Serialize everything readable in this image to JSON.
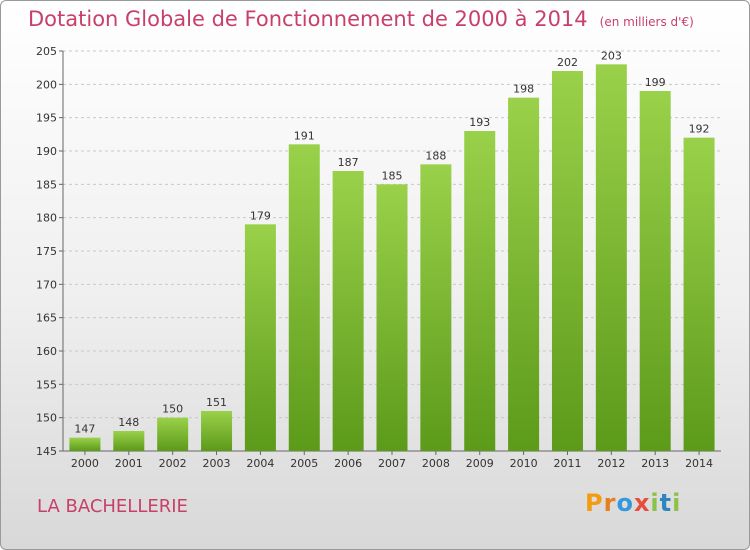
{
  "header": {
    "title": "Dotation Globale de Fonctionnement de 2000 à 2014",
    "unit": "(en milliers d'€)"
  },
  "commune": "LA BACHELLERIE",
  "logo": {
    "letters": [
      "P",
      "r",
      "o",
      "x",
      "i",
      "t",
      "i"
    ],
    "colors": [
      "#f39c12",
      "#e67e22",
      "#3498db",
      "#e74c3c",
      "#8bc34a",
      "#2e86c1",
      "#8bc34a"
    ]
  },
  "colors": {
    "bar_light": "#9ad14a",
    "bar_dark": "#5c9a1a",
    "title": "#c8406a"
  },
  "chart_data": {
    "type": "bar",
    "title": "Dotation Globale de Fonctionnement de 2000 à 2014",
    "xlabel": "",
    "ylabel": "",
    "categories": [
      "2000",
      "2001",
      "2002",
      "2003",
      "2004",
      "2005",
      "2006",
      "2007",
      "2008",
      "2009",
      "2010",
      "2011",
      "2012",
      "2013",
      "2014"
    ],
    "values": [
      147,
      148,
      150,
      151,
      179,
      191,
      187,
      185,
      188,
      193,
      198,
      202,
      203,
      199,
      192
    ],
    "ylim": [
      145,
      205
    ],
    "yticks": [
      145,
      150,
      155,
      160,
      165,
      170,
      175,
      180,
      185,
      190,
      195,
      200,
      205
    ],
    "grid": true,
    "legend": "none"
  }
}
